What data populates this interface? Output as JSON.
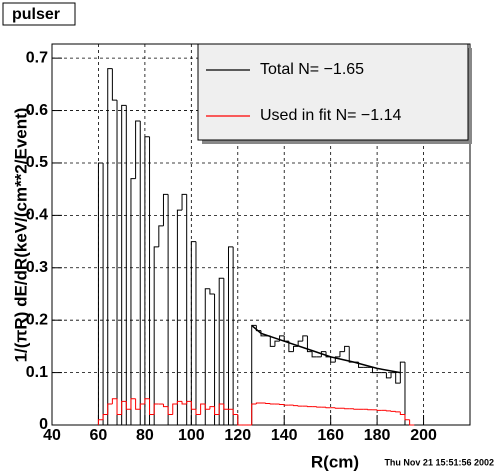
{
  "chart_data": {
    "type": "histogram",
    "title": "pulser",
    "x_label": "R(cm)",
    "y_label": "1/(πR) dE/dR(keV/(cm**2/Event)",
    "timestamp": "Thu Nov 21 15:51:56 2002",
    "bins": [
      60,
      62,
      64,
      66,
      68,
      70,
      72,
      74,
      76,
      78,
      80,
      82,
      84,
      86,
      88,
      90,
      92,
      94,
      96,
      98,
      100,
      102,
      104,
      106,
      108,
      110,
      112,
      114,
      116,
      118,
      120,
      122,
      124,
      126,
      128,
      130,
      132,
      134,
      136,
      138,
      140,
      142,
      144,
      146,
      148,
      150,
      152,
      154,
      156,
      158,
      160,
      162,
      164,
      166,
      168,
      170,
      172,
      174,
      176,
      178,
      180,
      182,
      184,
      186,
      188,
      190,
      192,
      194,
      196
    ],
    "series": [
      {
        "name": "Total N= −1.65",
        "color": "#000000",
        "values": [
          0.5,
          0,
          0.68,
          0.62,
          0,
          0.61,
          0,
          0.47,
          0.58,
          0,
          0.55,
          0,
          0.34,
          0.38,
          0.44,
          0,
          0,
          0.41,
          0.44,
          0,
          0.35,
          0,
          0,
          0.26,
          0.25,
          0,
          0.28,
          0,
          0.34,
          0,
          0,
          0,
          0,
          0.19,
          0.18,
          0.17,
          0.17,
          0.15,
          0.16,
          0.17,
          0.16,
          0.14,
          0.15,
          0.16,
          0.17,
          0.14,
          0.13,
          0.13,
          0.14,
          0.13,
          0.12,
          0.13,
          0.14,
          0.15,
          0.12,
          0.12,
          0.11,
          0.11,
          0.11,
          0.1,
          0.1,
          0.1,
          0.09,
          0.1,
          0.08,
          0.12,
          0,
          0
        ]
      },
      {
        "name": "Used in fit N= −1.14",
        "color": "#ff0000",
        "values": [
          0.01,
          0.02,
          0.04,
          0.05,
          0.02,
          0.045,
          0.03,
          0.05,
          0.03,
          0.04,
          0.05,
          0.02,
          0.04,
          0.04,
          0.035,
          0.02,
          0.04,
          0.045,
          0.04,
          0.045,
          0.03,
          0.02,
          0.04,
          0.03,
          0.035,
          0.02,
          0.04,
          0.03,
          0.03,
          0.02,
          0,
          0,
          0,
          0.04,
          0.042,
          0.042,
          0.041,
          0.04,
          0.04,
          0.039,
          0.038,
          0.038,
          0.037,
          0.036,
          0.036,
          0.035,
          0.035,
          0.034,
          0.034,
          0.033,
          0.033,
          0.032,
          0.032,
          0.031,
          0.031,
          0.03,
          0.03,
          0.03,
          0.029,
          0.029,
          0.028,
          0.028,
          0.027,
          0.026,
          0.025,
          0.02,
          0.01,
          0
        ]
      }
    ],
    "fit": {
      "color": "#000000",
      "x": [
        126,
        130,
        140,
        150,
        160,
        170,
        180,
        190
      ],
      "y": [
        0.19,
        0.175,
        0.16,
        0.145,
        0.13,
        0.12,
        0.108,
        0.1
      ]
    },
    "xlim": [
      40,
      220
    ],
    "ylim": [
      0,
      0.727
    ],
    "xticks": [
      40,
      60,
      80,
      100,
      120,
      140,
      160,
      180,
      200
    ],
    "yticks": [
      0,
      0.1,
      0.2,
      0.3,
      0.4,
      0.5,
      0.6,
      0.7
    ],
    "grid": true,
    "legend": "upper right"
  }
}
